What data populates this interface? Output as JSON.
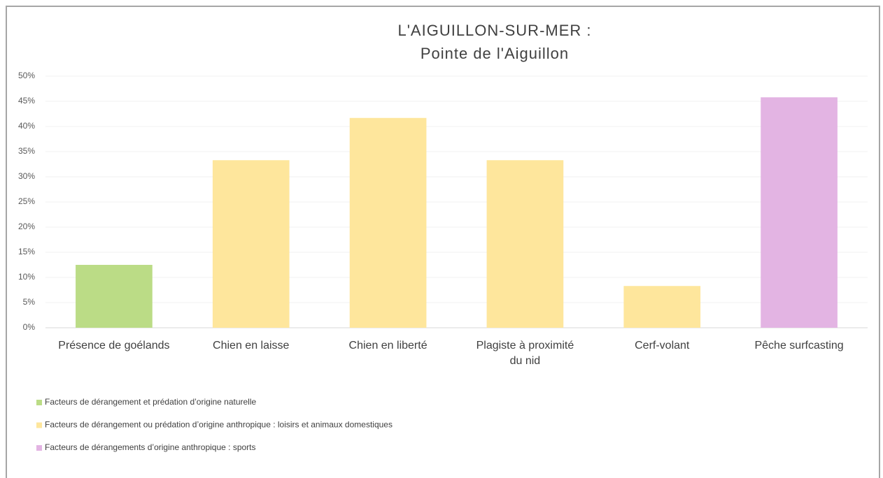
{
  "chart_data": {
    "type": "bar",
    "title": "L'AIGUILLON-SUR-MER :",
    "subtitle": "Pointe de l'Aiguillon",
    "categories": [
      "Présence de goélands",
      "Chien en laisse",
      "Chien en liberté",
      "Plagiste à proximité du nid",
      "Cerf-volant",
      "Pêche surfcasting"
    ],
    "values": [
      12.5,
      33.3,
      41.7,
      33.3,
      8.3,
      45.8
    ],
    "groups": [
      0,
      1,
      1,
      1,
      1,
      2
    ],
    "legend": [
      {
        "label": "Facteurs de dérangement et prédation d’origine naturelle",
        "color": "#bbdc86"
      },
      {
        "label": "Facteurs de dérangement ou prédation d’origine anthropique : loisirs et animaux domestiques",
        "color": "#fee69c"
      },
      {
        "label": "Facteurs de dérangements d’origine anthropique : sports",
        "color": "#e3b4e3"
      }
    ],
    "ylim": [
      0,
      50
    ],
    "yticks": [
      {
        "value": 0,
        "label": "0%"
      },
      {
        "value": 5,
        "label": "5%"
      },
      {
        "value": 10,
        "label": "10%"
      },
      {
        "value": 15,
        "label": "15%"
      },
      {
        "value": 20,
        "label": "20%"
      },
      {
        "value": 25,
        "label": "25%"
      },
      {
        "value": 30,
        "label": "30%"
      },
      {
        "value": 35,
        "label": "35%"
      },
      {
        "value": 40,
        "label": "40%"
      },
      {
        "value": 45,
        "label": "45%"
      },
      {
        "value": 50,
        "label": "50%"
      }
    ],
    "grid": true
  }
}
